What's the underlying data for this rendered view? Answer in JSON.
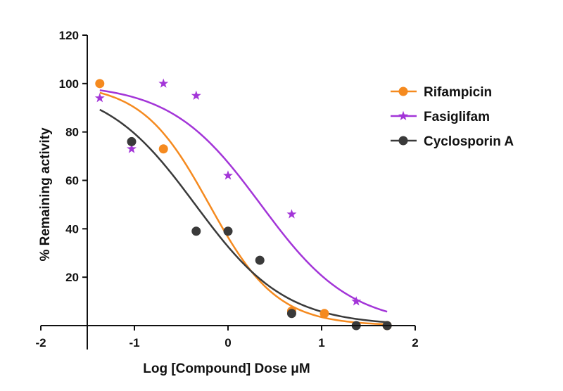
{
  "chart_data": {
    "type": "scatter",
    "title": "",
    "xlabel": "Log [Compound] Dose μM",
    "ylabel": "% Remaining activity",
    "xlim": [
      -2,
      2
    ],
    "ylim": [
      0,
      120
    ],
    "x_ticks": [
      "-2",
      "-1",
      "0",
      "1",
      "2"
    ],
    "y_ticks": [
      "20",
      "40",
      "60",
      "80",
      "100",
      "120"
    ],
    "legend_position": "right",
    "series": [
      {
        "name": "Rifampicin",
        "color": "#f58a1f",
        "marker": "circle",
        "x": [
          -1.37,
          -0.69,
          0.68,
          1.03,
          1.7
        ],
        "y": [
          100,
          73,
          6,
          5,
          0
        ],
        "curve": {
          "top": 100,
          "bottom": 0,
          "logIC50": -0.2,
          "hill": 1.2,
          "x_range": [
            -1.37,
            1.7
          ]
        }
      },
      {
        "name": "Fasiglifam",
        "color": "#a335d8",
        "marker": "star",
        "x": [
          -1.37,
          -1.03,
          -0.69,
          -0.34,
          0.0,
          0.68,
          1.37
        ],
        "y": [
          94,
          73,
          100,
          95,
          62,
          46,
          10
        ],
        "curve": {
          "top": 100,
          "bottom": 0,
          "logIC50": 0.35,
          "hill": 0.9,
          "x_range": [
            -1.37,
            1.7
          ]
        }
      },
      {
        "name": "Cyclosporin A",
        "color": "#3a3a3a",
        "marker": "circle",
        "x": [
          -1.03,
          -0.34,
          0.0,
          0.34,
          0.68,
          1.37,
          1.7
        ],
        "y": [
          76,
          39,
          39,
          27,
          5,
          0,
          0
        ],
        "curve": {
          "top": 100,
          "bottom": 0,
          "logIC50": -0.35,
          "hill": 0.9,
          "x_range": [
            -1.37,
            1.7
          ]
        }
      }
    ]
  }
}
